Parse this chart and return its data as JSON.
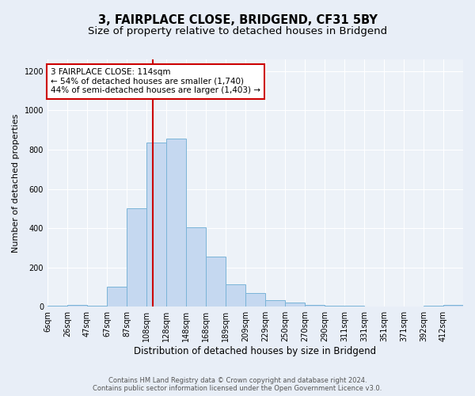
{
  "title": "3, FAIRPLACE CLOSE, BRIDGEND, CF31 5BY",
  "subtitle": "Size of property relative to detached houses in Bridgend",
  "xlabel": "Distribution of detached houses by size in Bridgend",
  "ylabel": "Number of detached properties",
  "bin_labels": [
    "6sqm",
    "26sqm",
    "47sqm",
    "67sqm",
    "87sqm",
    "108sqm",
    "128sqm",
    "148sqm",
    "168sqm",
    "189sqm",
    "209sqm",
    "229sqm",
    "250sqm",
    "270sqm",
    "290sqm",
    "311sqm",
    "331sqm",
    "351sqm",
    "371sqm",
    "392sqm",
    "412sqm"
  ],
  "num_bins": 21,
  "bar_heights": [
    5,
    10,
    5,
    100,
    500,
    835,
    855,
    405,
    255,
    115,
    70,
    35,
    20,
    10,
    5,
    5,
    0,
    0,
    0,
    5,
    10
  ],
  "bar_color": "#c5d8f0",
  "bar_edge_color": "#7ab4d8",
  "bar_edge_width": 0.7,
  "vline_x_bin": 5.3,
  "vline_color": "#cc0000",
  "annotation_text": "3 FAIRPLACE CLOSE: 114sqm\n← 54% of detached houses are smaller (1,740)\n44% of semi-detached houses are larger (1,403) →",
  "annotation_box_edge_color": "#cc0000",
  "annotation_box_face_color": "#ffffff",
  "ylim": [
    0,
    1260
  ],
  "yticks": [
    0,
    200,
    400,
    600,
    800,
    1000,
    1200
  ],
  "background_color": "#e8eef7",
  "plot_bg_color": "#edf2f8",
  "grid_color": "#ffffff",
  "title_fontsize": 10.5,
  "subtitle_fontsize": 9.5,
  "xlabel_fontsize": 8.5,
  "ylabel_fontsize": 8,
  "tick_fontsize": 7,
  "annotation_fontsize": 7.5,
  "footer_text": "Contains HM Land Registry data © Crown copyright and database right 2024.\nContains public sector information licensed under the Open Government Licence v3.0.",
  "footer_fontsize": 6
}
